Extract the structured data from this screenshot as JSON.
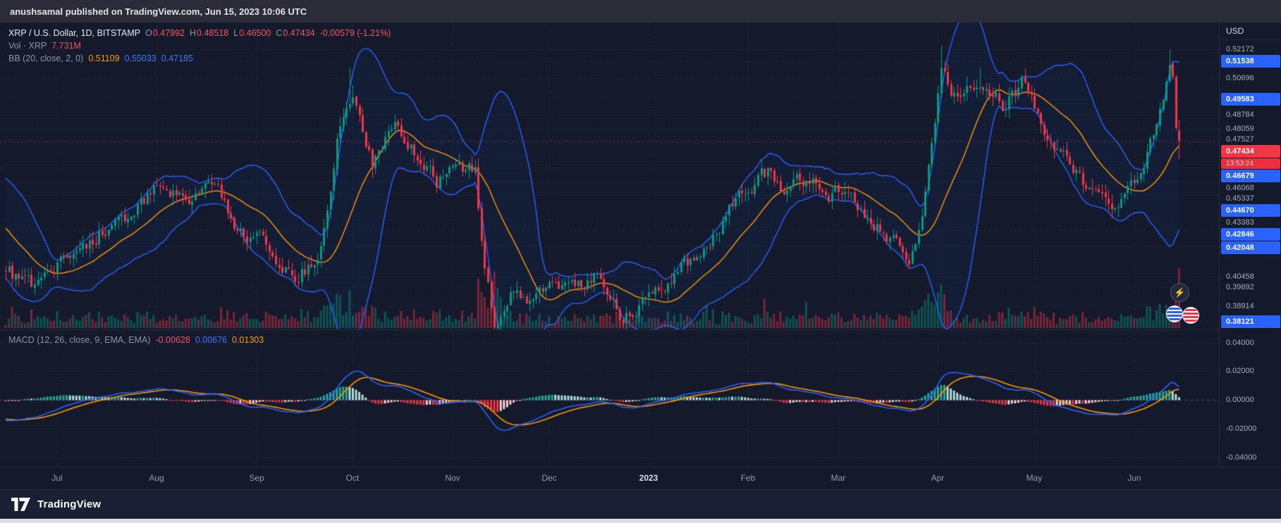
{
  "top_bar": {
    "text": "anushsamal published on TradingView.com, Jun 15, 2023 10:06 UTC"
  },
  "legend": {
    "symbol": "XRP / U.S. Dollar, 1D, BITSTAMP",
    "o_label": "O",
    "o": "0.47992",
    "h_label": "H",
    "h": "0.48518",
    "l_label": "L",
    "l": "0.46500",
    "c_label": "C",
    "c": "0.47434",
    "change": "-0.00579 (-1.21%)",
    "vol_label": "Vol · XRP",
    "vol_value": "7.731M",
    "bb_label": "BB (20, close, 2, 0)",
    "bb_basis": "0.51109",
    "bb_upper": "0.55033",
    "bb_lower": "0.47185",
    "macd_label": "MACD (12, 26, close, 9, EMA, EMA)",
    "macd_hist": "-0.00628",
    "macd_macd": "0.00676",
    "macd_signal": "0.01303"
  },
  "price_scale": {
    "currency": "USD",
    "labels": [
      {
        "text": "0.52172",
        "style": "plain"
      },
      {
        "text": "0.51538",
        "style": "blue"
      },
      {
        "text": "0.50696",
        "style": "plain"
      },
      {
        "text": "0.49583",
        "style": "blue"
      },
      {
        "text": "0.48784",
        "style": "plain"
      },
      {
        "text": "0.48059",
        "style": "plain"
      },
      {
        "text": "0.47527",
        "style": "plain"
      },
      {
        "text": "0.47434",
        "style": "current"
      },
      {
        "text": "13:53:24",
        "style": "countdown"
      },
      {
        "text": "0.46679",
        "style": "blue"
      },
      {
        "text": "0.46068",
        "style": "plain"
      },
      {
        "text": "0.45337",
        "style": "plain"
      },
      {
        "text": "0.44670",
        "style": "blue"
      },
      {
        "text": "0.43383",
        "style": "plain"
      },
      {
        "text": "0.42846",
        "style": "blue"
      },
      {
        "text": "0.42048",
        "style": "blue"
      },
      {
        "text": "0.40458",
        "style": "plain"
      },
      {
        "text": "0.39892",
        "style": "plain"
      },
      {
        "text": "0.38914",
        "style": "plain"
      },
      {
        "text": "0.38121",
        "style": "blue"
      }
    ]
  },
  "macd_scale": [
    "0.04000",
    "0.02000",
    "0.00000",
    "-0.02000",
    "-0.04000"
  ],
  "time_axis": [
    {
      "label": "Jul",
      "index": 16
    },
    {
      "label": "Aug",
      "index": 47
    },
    {
      "label": "Sep",
      "index": 78
    },
    {
      "label": "Oct",
      "index": 108
    },
    {
      "label": "Nov",
      "index": 139
    },
    {
      "label": "Dec",
      "index": 169
    },
    {
      "label": "2023",
      "index": 200,
      "bold": true
    },
    {
      "label": "Feb",
      "index": 231
    },
    {
      "label": "Mar",
      "index": 259
    },
    {
      "label": "Apr",
      "index": 290
    },
    {
      "label": "May",
      "index": 320
    },
    {
      "label": "Jun",
      "index": 351
    }
  ],
  "markers": {
    "lightning": "⚡"
  },
  "footer": {
    "brand": "TradingView"
  },
  "colors": {
    "up": "#089981",
    "down": "#f23645",
    "bb_band": "#2962ff",
    "bb_basis": "#ff9800",
    "macd_line": "#2962ff",
    "signal_line": "#ff9800",
    "hist_up": "#26a69a",
    "hist_up_light": "#b2dfdb",
    "hist_down": "#f23645",
    "hist_down_light": "#ffcdd2",
    "accent_blue": "#2962ff",
    "accent_red": "#f23645",
    "background": "#141a2c"
  },
  "chart_data": {
    "type": "candlestick",
    "title": "XRP / U.S. Dollar, 1D, BITSTAMP with Bollinger Bands (20,2), Volume and MACD (12,26,9)",
    "timeframe": "1D",
    "x_range": [
      "Jun 2022",
      "Jun 15 2023"
    ],
    "price_axis": {
      "top": 0.5355,
      "bottom": 0.3773
    },
    "macd_axis": {
      "top": 0.0485,
      "bottom": -0.0465
    },
    "grid": true,
    "last": {
      "open": 0.47992,
      "high": 0.48518,
      "low": 0.465,
      "close": 0.47434,
      "volume_m": 7.731
    },
    "price_anchors": [
      [
        0,
        0.408
      ],
      [
        8,
        0.398
      ],
      [
        20,
        0.415
      ],
      [
        30,
        0.428
      ],
      [
        40,
        0.438
      ],
      [
        49,
        0.452
      ],
      [
        57,
        0.443
      ],
      [
        64,
        0.455
      ],
      [
        71,
        0.432
      ],
      [
        81,
        0.42
      ],
      [
        90,
        0.407
      ],
      [
        97,
        0.412
      ],
      [
        104,
        0.485
      ],
      [
        108,
        0.492
      ],
      [
        114,
        0.462
      ],
      [
        121,
        0.487
      ],
      [
        128,
        0.468
      ],
      [
        134,
        0.452
      ],
      [
        140,
        0.465
      ],
      [
        146,
        0.458
      ],
      [
        149,
        0.408
      ],
      [
        152,
        0.382
      ],
      [
        158,
        0.398
      ],
      [
        164,
        0.39
      ],
      [
        170,
        0.404
      ],
      [
        177,
        0.396
      ],
      [
        183,
        0.404
      ],
      [
        191,
        0.384
      ],
      [
        196,
        0.386
      ],
      [
        202,
        0.394
      ],
      [
        210,
        0.408
      ],
      [
        218,
        0.42
      ],
      [
        225,
        0.44
      ],
      [
        231,
        0.448
      ],
      [
        237,
        0.458
      ],
      [
        243,
        0.446
      ],
      [
        249,
        0.455
      ],
      [
        256,
        0.445
      ],
      [
        261,
        0.452
      ],
      [
        268,
        0.438
      ],
      [
        275,
        0.425
      ],
      [
        281,
        0.412
      ],
      [
        285,
        0.438
      ],
      [
        288,
        0.478
      ],
      [
        291,
        0.512
      ],
      [
        296,
        0.496
      ],
      [
        303,
        0.508
      ],
      [
        310,
        0.492
      ],
      [
        317,
        0.506
      ],
      [
        323,
        0.478
      ],
      [
        330,
        0.462
      ],
      [
        338,
        0.448
      ],
      [
        345,
        0.438
      ],
      [
        351,
        0.452
      ],
      [
        357,
        0.478
      ],
      [
        360,
        0.495
      ],
      [
        362,
        0.513
      ],
      [
        363,
        0.507
      ],
      [
        364,
        0.48
      ],
      [
        365,
        0.47434
      ]
    ],
    "wick_highs": [
      [
        107,
        0.5125
      ],
      [
        108,
        0.503
      ],
      [
        291,
        0.5235
      ],
      [
        303,
        0.512
      ],
      [
        317,
        0.512
      ],
      [
        362,
        0.5217
      ]
    ],
    "volume_overrides": [
      [
        104,
        4.2
      ],
      [
        107,
        4.8
      ],
      [
        152,
        7.3
      ],
      [
        153,
        5.2
      ],
      [
        154,
        4.0
      ],
      [
        218,
        3.0
      ],
      [
        236,
        3.8
      ],
      [
        249,
        3.4
      ],
      [
        291,
        5.6
      ],
      [
        292,
        4.4
      ],
      [
        364,
        5.5
      ],
      [
        365,
        7.731
      ]
    ],
    "indicators": {
      "bollinger": {
        "period": 20,
        "mult": 2
      },
      "macd": {
        "fast": 12,
        "slow": 26,
        "signal": 9
      }
    }
  }
}
